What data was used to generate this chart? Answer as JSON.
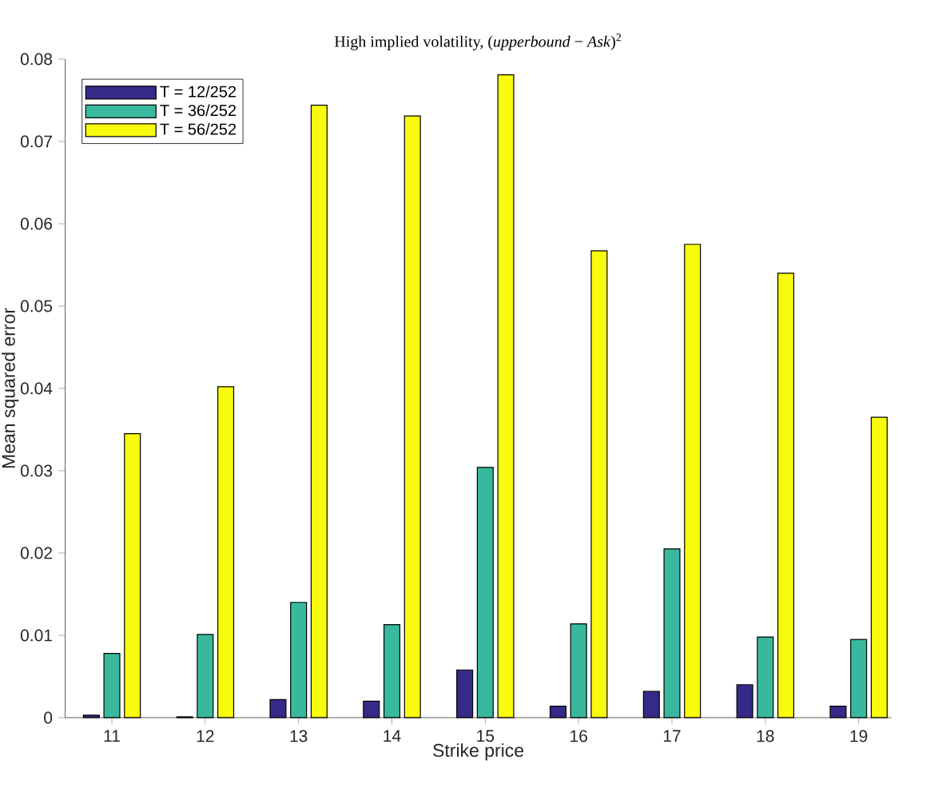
{
  "chart_data": {
    "type": "bar",
    "title": "High implied volatility, (*upperbound* − *Ask*)$^{2}$",
    "xlabel": "Strike price",
    "ylabel": "Mean squared error",
    "categories": [
      "11",
      "12",
      "13",
      "14",
      "15",
      "16",
      "17",
      "18",
      "19"
    ],
    "series": [
      {
        "name": "T = 12/252",
        "color": "#352a87",
        "values": [
          0.0003,
          0.0001,
          0.0022,
          0.002,
          0.0058,
          0.0014,
          0.0032,
          0.004,
          0.0014
        ]
      },
      {
        "name": "T = 36/252",
        "color": "#38b99e",
        "values": [
          0.0078,
          0.0101,
          0.014,
          0.0113,
          0.0304,
          0.0114,
          0.0205,
          0.0098,
          0.0095
        ]
      },
      {
        "name": "T = 56/252",
        "color": "#f9fb0e",
        "values": [
          0.0345,
          0.0402,
          0.0744,
          0.0731,
          0.0781,
          0.0567,
          0.0575,
          0.054,
          0.0365
        ]
      }
    ],
    "ylim": [
      0,
      0.08
    ],
    "yticks": [
      0,
      0.01,
      0.02,
      0.03,
      0.04,
      0.05,
      0.06,
      0.07,
      0.08
    ],
    "legend": "top left",
    "grid": false
  }
}
